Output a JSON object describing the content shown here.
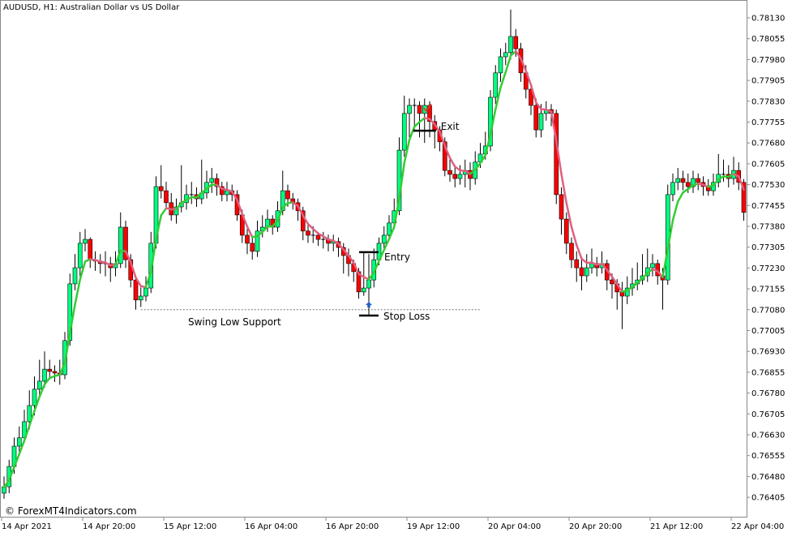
{
  "header": {
    "title": "AUDUSD, H1:  Australian Dollar vs US Dollar"
  },
  "watermark": "© ForexMT4Indicators.com",
  "colors": {
    "bull": "#00ff7f",
    "bear": "#ff0000",
    "wick": "#000000",
    "indicator_up": "#32cd32",
    "indicator_down": "#e06080",
    "arrow": "#1e64c8",
    "check": "#e03c14"
  },
  "chart_data": {
    "type": "candlestick",
    "symbol": "AUDUSD",
    "timeframe": "H1",
    "ylim": [
      0.7637,
      0.7819
    ],
    "y_ticks": [
      "0.78130",
      "0.78055",
      "0.77980",
      "0.77905",
      "0.77830",
      "0.77755",
      "0.77680",
      "0.77605",
      "0.77530",
      "0.77455",
      "0.77380",
      "0.77305",
      "0.77230",
      "0.77155",
      "0.77080",
      "0.77005",
      "0.76930",
      "0.76855",
      "0.76780",
      "0.76705",
      "0.76630",
      "0.76555",
      "0.76480",
      "0.76405"
    ],
    "x_ticks": [
      {
        "bar": 0,
        "label": "14 Apr 2021"
      },
      {
        "bar": 16,
        "label": "14 Apr 20:00"
      },
      {
        "bar": 32,
        "label": "15 Apr 12:00"
      },
      {
        "bar": 48,
        "label": "16 Apr 04:00"
      },
      {
        "bar": 64,
        "label": "16 Apr 20:00"
      },
      {
        "bar": 80,
        "label": "19 Apr 12:00"
      },
      {
        "bar": 96,
        "label": "20 Apr 04:00"
      },
      {
        "bar": 112,
        "label": "20 Apr 20:00"
      },
      {
        "bar": 128,
        "label": "21 Apr 12:00"
      },
      {
        "bar": 144,
        "label": "22 Apr 04:00"
      }
    ],
    "candles_ohlc": [
      [
        0.7642,
        0.7648,
        0.764,
        0.76443
      ],
      [
        0.76443,
        0.7654,
        0.7642,
        0.76516
      ],
      [
        0.76516,
        0.7662,
        0.7649,
        0.76589
      ],
      [
        0.76589,
        0.7666,
        0.7657,
        0.76619
      ],
      [
        0.76619,
        0.7672,
        0.766,
        0.76677
      ],
      [
        0.76677,
        0.7679,
        0.7665,
        0.76735
      ],
      [
        0.76735,
        0.7684,
        0.767,
        0.76794
      ],
      [
        0.76794,
        0.769,
        0.7677,
        0.76823
      ],
      [
        0.76823,
        0.7693,
        0.768,
        0.76866
      ],
      [
        0.76866,
        0.769,
        0.7683,
        0.76858
      ],
      [
        0.76858,
        0.7688,
        0.7682,
        0.76852
      ],
      [
        0.76852,
        0.769,
        0.7681,
        0.76846
      ],
      [
        0.76846,
        0.77,
        0.7683,
        0.76969
      ],
      [
        0.76969,
        0.7721,
        0.7695,
        0.77173
      ],
      [
        0.77173,
        0.7728,
        0.7715,
        0.77231
      ],
      [
        0.77231,
        0.7736,
        0.772,
        0.77319
      ],
      [
        0.77319,
        0.7737,
        0.7729,
        0.77333
      ],
      [
        0.77333,
        0.7734,
        0.7723,
        0.7726
      ],
      [
        0.7726,
        0.7729,
        0.7722,
        0.77255
      ],
      [
        0.77255,
        0.7728,
        0.7721,
        0.77246
      ],
      [
        0.77246,
        0.7729,
        0.772,
        0.77246
      ],
      [
        0.77246,
        0.7727,
        0.7718,
        0.77231
      ],
      [
        0.77231,
        0.7729,
        0.772,
        0.77246
      ],
      [
        0.77246,
        0.7743,
        0.7723,
        0.77377
      ],
      [
        0.77377,
        0.774,
        0.7723,
        0.7726
      ],
      [
        0.7726,
        0.7728,
        0.7716,
        0.77187
      ],
      [
        0.77187,
        0.772,
        0.7708,
        0.77115
      ],
      [
        0.77115,
        0.7716,
        0.7709,
        0.77129
      ],
      [
        0.77129,
        0.772,
        0.7711,
        0.77158
      ],
      [
        0.77158,
        0.7736,
        0.7714,
        0.77319
      ],
      [
        0.77319,
        0.7756,
        0.773,
        0.77523
      ],
      [
        0.77523,
        0.776,
        0.7748,
        0.77508
      ],
      [
        0.77508,
        0.7754,
        0.7744,
        0.77465
      ],
      [
        0.77465,
        0.775,
        0.774,
        0.77421
      ],
      [
        0.77421,
        0.7748,
        0.7739,
        0.7745
      ],
      [
        0.7745,
        0.776,
        0.7743,
        0.77465
      ],
      [
        0.77465,
        0.7753,
        0.7744,
        0.77494
      ],
      [
        0.77494,
        0.7754,
        0.7746,
        0.77494
      ],
      [
        0.77494,
        0.7752,
        0.7745,
        0.77479
      ],
      [
        0.77479,
        0.7762,
        0.7746,
        0.775
      ],
      [
        0.775,
        0.7758,
        0.7748,
        0.77538
      ],
      [
        0.77538,
        0.7759,
        0.775,
        0.77552
      ],
      [
        0.77552,
        0.7757,
        0.7749,
        0.77523
      ],
      [
        0.77523,
        0.7754,
        0.7747,
        0.77494
      ],
      [
        0.77494,
        0.7754,
        0.7747,
        0.77508
      ],
      [
        0.77508,
        0.7753,
        0.7747,
        0.77494
      ],
      [
        0.77494,
        0.7751,
        0.774,
        0.77421
      ],
      [
        0.77421,
        0.7744,
        0.7732,
        0.77348
      ],
      [
        0.77348,
        0.7737,
        0.7728,
        0.77319
      ],
      [
        0.77319,
        0.7734,
        0.7726,
        0.7729
      ],
      [
        0.7729,
        0.774,
        0.7727,
        0.77363
      ],
      [
        0.77363,
        0.7742,
        0.7734,
        0.77377
      ],
      [
        0.77377,
        0.7744,
        0.7736,
        0.77406
      ],
      [
        0.77406,
        0.7742,
        0.7735,
        0.77377
      ],
      [
        0.77377,
        0.7747,
        0.7736,
        0.77436
      ],
      [
        0.77436,
        0.7758,
        0.7742,
        0.77508
      ],
      [
        0.77508,
        0.7753,
        0.7745,
        0.77479
      ],
      [
        0.77479,
        0.775,
        0.7744,
        0.77465
      ],
      [
        0.77465,
        0.7748,
        0.774,
        0.77436
      ],
      [
        0.77436,
        0.7745,
        0.7733,
        0.77363
      ],
      [
        0.77363,
        0.7739,
        0.7732,
        0.77348
      ],
      [
        0.77348,
        0.7738,
        0.7732,
        0.77348
      ],
      [
        0.77348,
        0.7736,
        0.7731,
        0.77333
      ],
      [
        0.77333,
        0.7736,
        0.773,
        0.77333
      ],
      [
        0.77333,
        0.7735,
        0.7729,
        0.77319
      ],
      [
        0.77319,
        0.7735,
        0.7729,
        0.77325
      ],
      [
        0.77325,
        0.7734,
        0.7727,
        0.77304
      ],
      [
        0.77304,
        0.7732,
        0.7721,
        0.77275
      ],
      [
        0.77275,
        0.773,
        0.772,
        0.77246
      ],
      [
        0.77246,
        0.7726,
        0.7718,
        0.77217
      ],
      [
        0.77217,
        0.7723,
        0.7712,
        0.77144
      ],
      [
        0.77144,
        0.7729,
        0.7713,
        0.77158
      ],
      [
        0.77158,
        0.7728,
        0.7706,
        0.77187
      ],
      [
        0.77187,
        0.773,
        0.7716,
        0.7726
      ],
      [
        0.7726,
        0.7734,
        0.7724,
        0.77319
      ],
      [
        0.77319,
        0.7738,
        0.773,
        0.77348
      ],
      [
        0.77348,
        0.7742,
        0.7733,
        0.77392
      ],
      [
        0.77392,
        0.7748,
        0.7737,
        0.77436
      ],
      [
        0.77436,
        0.777,
        0.7742,
        0.77654
      ],
      [
        0.77654,
        0.7785,
        0.7763,
        0.77786
      ],
      [
        0.77786,
        0.7784,
        0.777,
        0.77815
      ],
      [
        0.77815,
        0.7784,
        0.7772,
        0.77815
      ],
      [
        0.77815,
        0.7783,
        0.777,
        0.77786
      ],
      [
        0.77786,
        0.7784,
        0.7768,
        0.77815
      ],
      [
        0.77815,
        0.7783,
        0.777,
        0.77757
      ],
      [
        0.77757,
        0.7778,
        0.7766,
        0.77727
      ],
      [
        0.77727,
        0.7774,
        0.7765,
        0.77684
      ],
      [
        0.77684,
        0.777,
        0.7756,
        0.77581
      ],
      [
        0.77581,
        0.7762,
        0.7754,
        0.77567
      ],
      [
        0.77567,
        0.776,
        0.7752,
        0.77552
      ],
      [
        0.77552,
        0.776,
        0.7753,
        0.77567
      ],
      [
        0.77567,
        0.7762,
        0.7752,
        0.77581
      ],
      [
        0.77581,
        0.7761,
        0.7751,
        0.77552
      ],
      [
        0.77552,
        0.7765,
        0.7753,
        0.77611
      ],
      [
        0.77611,
        0.7768,
        0.7759,
        0.7764
      ],
      [
        0.7764,
        0.7772,
        0.7762,
        0.77669
      ],
      [
        0.77669,
        0.7787,
        0.7765,
        0.77844
      ],
      [
        0.77844,
        0.7796,
        0.7782,
        0.77932
      ],
      [
        0.77932,
        0.7802,
        0.779,
        0.7799
      ],
      [
        0.7799,
        0.7804,
        0.7796,
        0.78005
      ],
      [
        0.78005,
        0.7816,
        0.7798,
        0.78063
      ],
      [
        0.78063,
        0.7809,
        0.7799,
        0.78019
      ],
      [
        0.78019,
        0.7804,
        0.779,
        0.77932
      ],
      [
        0.77932,
        0.7796,
        0.7784,
        0.77873
      ],
      [
        0.77873,
        0.7789,
        0.7778,
        0.77815
      ],
      [
        0.77815,
        0.7784,
        0.777,
        0.77727
      ],
      [
        0.77727,
        0.7782,
        0.777,
        0.77786
      ],
      [
        0.77786,
        0.7783,
        0.7776,
        0.778
      ],
      [
        0.778,
        0.7782,
        0.7774,
        0.77786
      ],
      [
        0.77786,
        0.778,
        0.7746,
        0.77494
      ],
      [
        0.77494,
        0.7752,
        0.7735,
        0.77406
      ],
      [
        0.77406,
        0.7743,
        0.7728,
        0.77319
      ],
      [
        0.77319,
        0.7734,
        0.7723,
        0.7726
      ],
      [
        0.7726,
        0.7729,
        0.7718,
        0.77231
      ],
      [
        0.77231,
        0.7726,
        0.7715,
        0.77202
      ],
      [
        0.77202,
        0.7728,
        0.7718,
        0.77231
      ],
      [
        0.77231,
        0.773,
        0.7721,
        0.77246
      ],
      [
        0.77246,
        0.7727,
        0.772,
        0.77231
      ],
      [
        0.77231,
        0.7729,
        0.7721,
        0.77246
      ],
      [
        0.77246,
        0.7726,
        0.7715,
        0.77187
      ],
      [
        0.77187,
        0.7721,
        0.7712,
        0.77173
      ],
      [
        0.77173,
        0.7719,
        0.7708,
        0.77144
      ],
      [
        0.77144,
        0.7718,
        0.7701,
        0.77129
      ],
      [
        0.77129,
        0.772,
        0.771,
        0.77158
      ],
      [
        0.77158,
        0.7723,
        0.7713,
        0.77173
      ],
      [
        0.77173,
        0.7725,
        0.7715,
        0.77187
      ],
      [
        0.77187,
        0.7728,
        0.7717,
        0.77202
      ],
      [
        0.77202,
        0.773,
        0.7718,
        0.77231
      ],
      [
        0.77231,
        0.7728,
        0.772,
        0.77246
      ],
      [
        0.77246,
        0.7726,
        0.7717,
        0.77202
      ],
      [
        0.77202,
        0.7723,
        0.7708,
        0.77187
      ],
      [
        0.77187,
        0.7753,
        0.7717,
        0.77494
      ],
      [
        0.77494,
        0.7757,
        0.7747,
        0.77538
      ],
      [
        0.77538,
        0.7759,
        0.7751,
        0.77552
      ],
      [
        0.77552,
        0.7758,
        0.7751,
        0.77538
      ],
      [
        0.77538,
        0.7757,
        0.775,
        0.77523
      ],
      [
        0.77523,
        0.7758,
        0.775,
        0.77552
      ],
      [
        0.77552,
        0.7757,
        0.7751,
        0.77538
      ],
      [
        0.77538,
        0.7756,
        0.7749,
        0.77523
      ],
      [
        0.77523,
        0.7755,
        0.7749,
        0.77508
      ],
      [
        0.77508,
        0.7757,
        0.7749,
        0.77538
      ],
      [
        0.77538,
        0.7764,
        0.7752,
        0.77567
      ],
      [
        0.77567,
        0.7762,
        0.7754,
        0.77567
      ],
      [
        0.77567,
        0.776,
        0.7752,
        0.77552
      ],
      [
        0.77552,
        0.7763,
        0.7753,
        0.77581
      ],
      [
        0.77581,
        0.7761,
        0.7751,
        0.77538
      ],
      [
        0.77538,
        0.7755,
        0.774,
        0.7743
      ]
    ],
    "annotations": {
      "swing_low": {
        "label": "Swing Low Support",
        "price": 0.7708,
        "from_bar": 27,
        "to_bar": 94
      },
      "entry": {
        "label": "Entry",
        "price": 0.77287,
        "bar": 72
      },
      "stop_loss": {
        "label": "Stop Loss",
        "price": 0.77059,
        "bar": 72
      },
      "exit": {
        "label": "Exit",
        "price": 0.77724,
        "bar": 83
      },
      "buy_arrow": {
        "icon": "arrow-up-icon",
        "bar": 72,
        "price": 0.771
      },
      "exit_check": {
        "icon": "checkmark-icon",
        "bar": 83,
        "price": 0.778
      }
    }
  }
}
